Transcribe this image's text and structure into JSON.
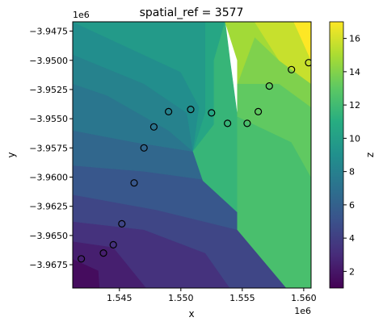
{
  "chart_data": {
    "type": "heatmap",
    "title": "spatial_ref = 3577",
    "xlabel": "x",
    "ylabel": "y",
    "colorbar_label": "z",
    "x_offset_label": "1e6",
    "y_offset_label": "1e6",
    "xlim": [
      1.5412,
      1.5606
    ],
    "ylim": [
      -3.9695,
      -3.9467
    ],
    "x_ticks": [
      1.545,
      1.55,
      1.555,
      1.56
    ],
    "x_tick_labels": [
      "1.545",
      "1.550",
      "1.555",
      "1.560"
    ],
    "y_ticks": [
      -3.9475,
      -3.95,
      -3.9525,
      -3.955,
      -3.9575,
      -3.96,
      -3.9625,
      -3.965,
      -3.9675
    ],
    "y_tick_labels": [
      "−3.9475",
      "−3.9500",
      "−3.9525",
      "−3.9550",
      "−3.9575",
      "−3.9600",
      "−3.9625",
      "−3.9650",
      "−3.9675"
    ],
    "colorbar_range": [
      1,
      17
    ],
    "colorbar_ticks": [
      2,
      4,
      6,
      8,
      10,
      12,
      14,
      16
    ],
    "colorbar_tick_labels": [
      "2",
      "4",
      "6",
      "8",
      "10",
      "12",
      "14",
      "16"
    ],
    "colormap": "viridis",
    "regions": [
      {
        "z": 1.5,
        "poly": [
          [
            1.5412,
            -3.9695
          ],
          [
            1.5434,
            -3.9695
          ],
          [
            1.5433,
            -3.968
          ],
          [
            1.5412,
            -3.967
          ]
        ]
      },
      {
        "z": 2.4,
        "poly": [
          [
            1.5412,
            -3.967
          ],
          [
            1.5433,
            -3.968
          ],
          [
            1.5434,
            -3.9695
          ],
          [
            1.5472,
            -3.9695
          ],
          [
            1.5445,
            -3.966
          ],
          [
            1.5412,
            -3.9655
          ]
        ]
      },
      {
        "z": 3.3,
        "poly": [
          [
            1.5412,
            -3.9655
          ],
          [
            1.5445,
            -3.966
          ],
          [
            1.5472,
            -3.9695
          ],
          [
            1.554,
            -3.9695
          ],
          [
            1.552,
            -3.9665
          ],
          [
            1.547,
            -3.9645
          ],
          [
            1.5412,
            -3.9638
          ]
        ]
      },
      {
        "z": 4.4,
        "poly": [
          [
            1.5412,
            -3.9638
          ],
          [
            1.547,
            -3.9645
          ],
          [
            1.552,
            -3.9665
          ],
          [
            1.554,
            -3.9695
          ],
          [
            1.5586,
            -3.9695
          ],
          [
            1.5546,
            -3.9645
          ],
          [
            1.548,
            -3.9628
          ],
          [
            1.5412,
            -3.9615
          ]
        ]
      },
      {
        "z": 5.4,
        "poly": [
          [
            1.5412,
            -3.9615
          ],
          [
            1.548,
            -3.9628
          ],
          [
            1.5546,
            -3.9645
          ],
          [
            1.5546,
            -3.963
          ],
          [
            1.5525,
            -3.9603
          ],
          [
            1.547,
            -3.9595
          ],
          [
            1.5412,
            -3.959
          ]
        ]
      },
      {
        "z": 6.4,
        "poly": [
          [
            1.5412,
            -3.959
          ],
          [
            1.547,
            -3.9595
          ],
          [
            1.5525,
            -3.9603
          ],
          [
            1.551,
            -3.9578
          ],
          [
            1.5462,
            -3.957
          ],
          [
            1.5412,
            -3.956
          ]
        ]
      },
      {
        "z": 7.3,
        "poly": [
          [
            1.5412,
            -3.956
          ],
          [
            1.5462,
            -3.957
          ],
          [
            1.551,
            -3.9578
          ],
          [
            1.549,
            -3.956
          ],
          [
            1.544,
            -3.953
          ],
          [
            1.5412,
            -3.952
          ]
        ]
      },
      {
        "z": 8.1,
        "poly": [
          [
            1.5412,
            -3.952
          ],
          [
            1.544,
            -3.953
          ],
          [
            1.549,
            -3.956
          ],
          [
            1.551,
            -3.9578
          ],
          [
            1.5505,
            -3.9545
          ],
          [
            1.547,
            -3.952
          ],
          [
            1.5412,
            -3.9495
          ]
        ]
      },
      {
        "z": 8.9,
        "poly": [
          [
            1.5412,
            -3.9495
          ],
          [
            1.547,
            -3.952
          ],
          [
            1.5505,
            -3.9545
          ],
          [
            1.551,
            -3.9578
          ],
          [
            1.5515,
            -3.954
          ],
          [
            1.55,
            -3.951
          ],
          [
            1.5412,
            -3.9467
          ]
        ]
      },
      {
        "z": 9.7,
        "poly": [
          [
            1.5412,
            -3.9467
          ],
          [
            1.55,
            -3.951
          ],
          [
            1.5515,
            -3.954
          ],
          [
            1.551,
            -3.9578
          ],
          [
            1.552,
            -3.9545
          ],
          [
            1.552,
            -3.9467
          ]
        ]
      },
      {
        "z": 10.5,
        "poly": [
          [
            1.552,
            -3.9467
          ],
          [
            1.552,
            -3.9545
          ],
          [
            1.551,
            -3.9578
          ],
          [
            1.5527,
            -3.9555
          ],
          [
            1.5527,
            -3.95
          ],
          [
            1.5536,
            -3.9467
          ]
        ]
      },
      {
        "z": 11.6,
        "poly": [
          [
            1.5536,
            -3.9467
          ],
          [
            1.5527,
            -3.95
          ],
          [
            1.5527,
            -3.9555
          ],
          [
            1.551,
            -3.9578
          ],
          [
            1.5518,
            -3.9603
          ],
          [
            1.5546,
            -3.963
          ],
          [
            1.5546,
            -3.9548
          ],
          [
            1.554,
            -3.95
          ]
        ]
      },
      {
        "z": 12.3,
        "poly": [
          [
            1.5546,
            -3.963
          ],
          [
            1.5546,
            -3.9645
          ],
          [
            1.5586,
            -3.9695
          ],
          [
            1.5606,
            -3.9695
          ],
          [
            1.5606,
            -3.96
          ],
          [
            1.559,
            -3.957
          ],
          [
            1.5546,
            -3.9548
          ]
        ]
      },
      {
        "z": 13.1,
        "poly": [
          [
            1.5546,
            -3.9548
          ],
          [
            1.559,
            -3.957
          ],
          [
            1.5606,
            -3.96
          ],
          [
            1.5606,
            -3.954
          ],
          [
            1.558,
            -3.952
          ],
          [
            1.5546,
            -3.952
          ]
        ]
      },
      {
        "z": 13.9,
        "poly": [
          [
            1.5546,
            -3.952
          ],
          [
            1.558,
            -3.952
          ],
          [
            1.5606,
            -3.954
          ],
          [
            1.5606,
            -3.952
          ],
          [
            1.558,
            -3.95
          ],
          [
            1.556,
            -3.948
          ],
          [
            1.5546,
            -3.95
          ]
        ]
      },
      {
        "z": 14.8,
        "poly": [
          [
            1.5536,
            -3.9467
          ],
          [
            1.5546,
            -3.95
          ],
          [
            1.5546,
            -3.952
          ],
          [
            1.556,
            -3.948
          ],
          [
            1.558,
            -3.95
          ],
          [
            1.5606,
            -3.952
          ],
          [
            1.5592,
            -3.9467
          ]
        ]
      },
      {
        "z": 15.7,
        "poly": [
          [
            1.556,
            -3.9467
          ],
          [
            1.558,
            -3.95
          ],
          [
            1.5606,
            -3.952
          ],
          [
            1.5606,
            -3.95
          ],
          [
            1.5592,
            -3.9467
          ]
        ]
      },
      {
        "z": 17.0,
        "poly": [
          [
            1.5592,
            -3.9467
          ],
          [
            1.5606,
            -3.95
          ],
          [
            1.5606,
            -3.9467
          ]
        ]
      }
    ],
    "points": [
      {
        "x": 1.5419,
        "y": -3.967
      },
      {
        "x": 1.5437,
        "y": -3.9665
      },
      {
        "x": 1.5445,
        "y": -3.9658
      },
      {
        "x": 1.5452,
        "y": -3.964
      },
      {
        "x": 1.5462,
        "y": -3.9605
      },
      {
        "x": 1.547,
        "y": -3.9575
      },
      {
        "x": 1.5478,
        "y": -3.9557
      },
      {
        "x": 1.549,
        "y": -3.9544
      },
      {
        "x": 1.5508,
        "y": -3.9542
      },
      {
        "x": 1.5525,
        "y": -3.9545
      },
      {
        "x": 1.5538,
        "y": -3.9554
      },
      {
        "x": 1.5554,
        "y": -3.9554
      },
      {
        "x": 1.5563,
        "y": -3.9544
      },
      {
        "x": 1.5572,
        "y": -3.9522
      },
      {
        "x": 1.559,
        "y": -3.9508
      },
      {
        "x": 1.5604,
        "y": -3.9502
      }
    ]
  }
}
